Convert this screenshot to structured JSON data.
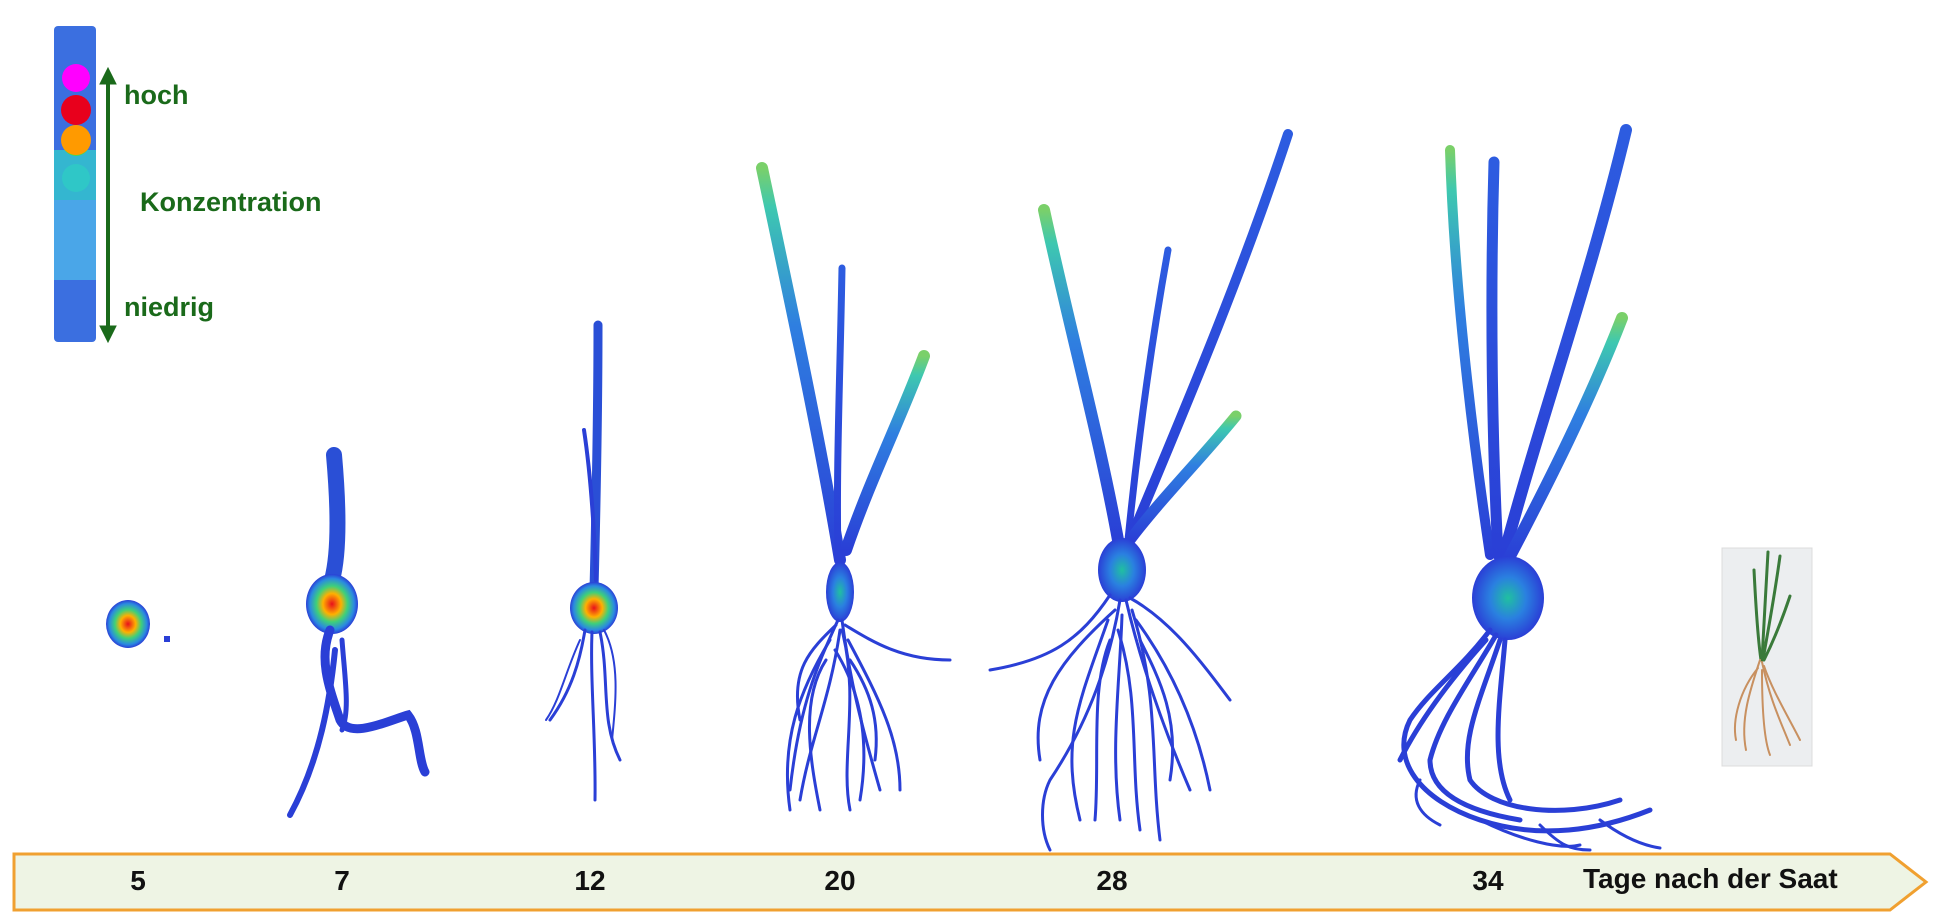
{
  "legend": {
    "high_label": "hoch",
    "quantity_label": "Konzentration",
    "low_label": "niedrig",
    "scale_colors": [
      "#ff00ff",
      "#e8001c",
      "#ff9a00",
      "#4cd64c",
      "#2fc7c7",
      "#4aa6e8",
      "#3b6fe0"
    ],
    "arrow_color": "#1a6a1a"
  },
  "timeline": {
    "axis_label": "Tage nach der Saat",
    "days": [
      "5",
      "7",
      "12",
      "20",
      "28",
      "34"
    ],
    "bar_fill": "#eef4e4",
    "bar_border": "#f0a030"
  },
  "colors": {
    "root_blue": "#2a3fd6",
    "shoot_blue": "#2a55d8",
    "leaf_tip": "#5ad07a",
    "seed_core": "#e81c3a"
  }
}
